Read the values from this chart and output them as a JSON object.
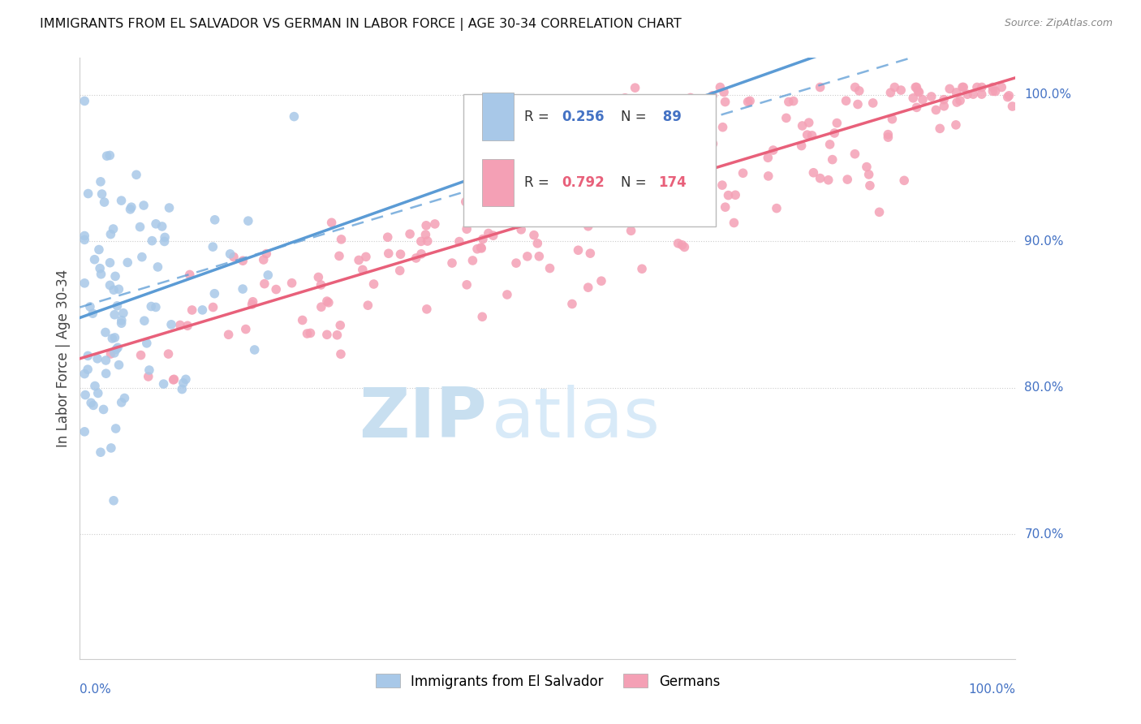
{
  "title": "IMMIGRANTS FROM EL SALVADOR VS GERMAN IN LABOR FORCE | AGE 30-34 CORRELATION CHART",
  "source": "Source: ZipAtlas.com",
  "ylabel": "In Labor Force | Age 30-34",
  "y_ticks": [
    0.7,
    0.8,
    0.9,
    1.0
  ],
  "y_tick_labels": [
    "70.0%",
    "80.0%",
    "90.0%",
    "100.0%"
  ],
  "x_range": [
    0.0,
    1.0
  ],
  "y_range": [
    0.615,
    1.025
  ],
  "legend_r1": "0.256",
  "legend_n1": " 89",
  "legend_r2": "0.792",
  "legend_n2": "174",
  "color_salvador": "#a8c8e8",
  "color_german": "#f4a0b5",
  "color_salvador_line": "#5b9bd5",
  "color_german_line": "#e8607a",
  "color_blue_text": "#4472c4",
  "color_pink_text": "#e8607a",
  "watermark_zip_color": "#c8dff0",
  "watermark_atlas_color": "#d8eaf8"
}
